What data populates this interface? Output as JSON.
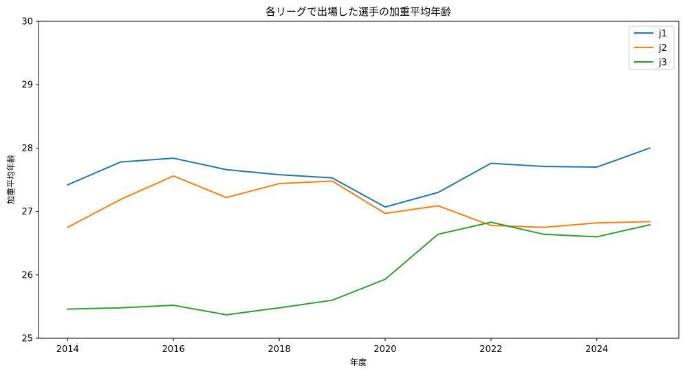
{
  "chart_data": {
    "type": "line",
    "title": "各リーグで出場した選手の加重平均年齢",
    "xlabel": "年度",
    "ylabel": "加重平均年齢",
    "x": [
      2014,
      2015,
      2016,
      2017,
      2018,
      2019,
      2020,
      2021,
      2022,
      2023,
      2024,
      2025
    ],
    "xlim": [
      2013.45,
      2025.55
    ],
    "ylim": [
      25,
      30
    ],
    "xticks": [
      2014,
      2016,
      2018,
      2020,
      2022,
      2024
    ],
    "yticks": [
      25,
      26,
      27,
      28,
      29,
      30
    ],
    "grid": false,
    "legend_position": "top-right",
    "series": [
      {
        "name": "j1",
        "color": "#1f77b4",
        "values": [
          27.42,
          27.78,
          27.84,
          27.66,
          27.58,
          27.53,
          27.07,
          27.3,
          27.76,
          27.71,
          27.7,
          28.0
        ]
      },
      {
        "name": "j2",
        "color": "#ff7f0e",
        "values": [
          26.75,
          27.19,
          27.56,
          27.22,
          27.44,
          27.48,
          26.97,
          27.09,
          26.78,
          26.75,
          26.82,
          26.84
        ]
      },
      {
        "name": "j3",
        "color": "#2ca02c",
        "values": [
          25.46,
          25.48,
          25.52,
          25.37,
          25.48,
          25.6,
          25.93,
          26.64,
          26.83,
          26.64,
          26.6,
          26.79
        ]
      }
    ]
  }
}
